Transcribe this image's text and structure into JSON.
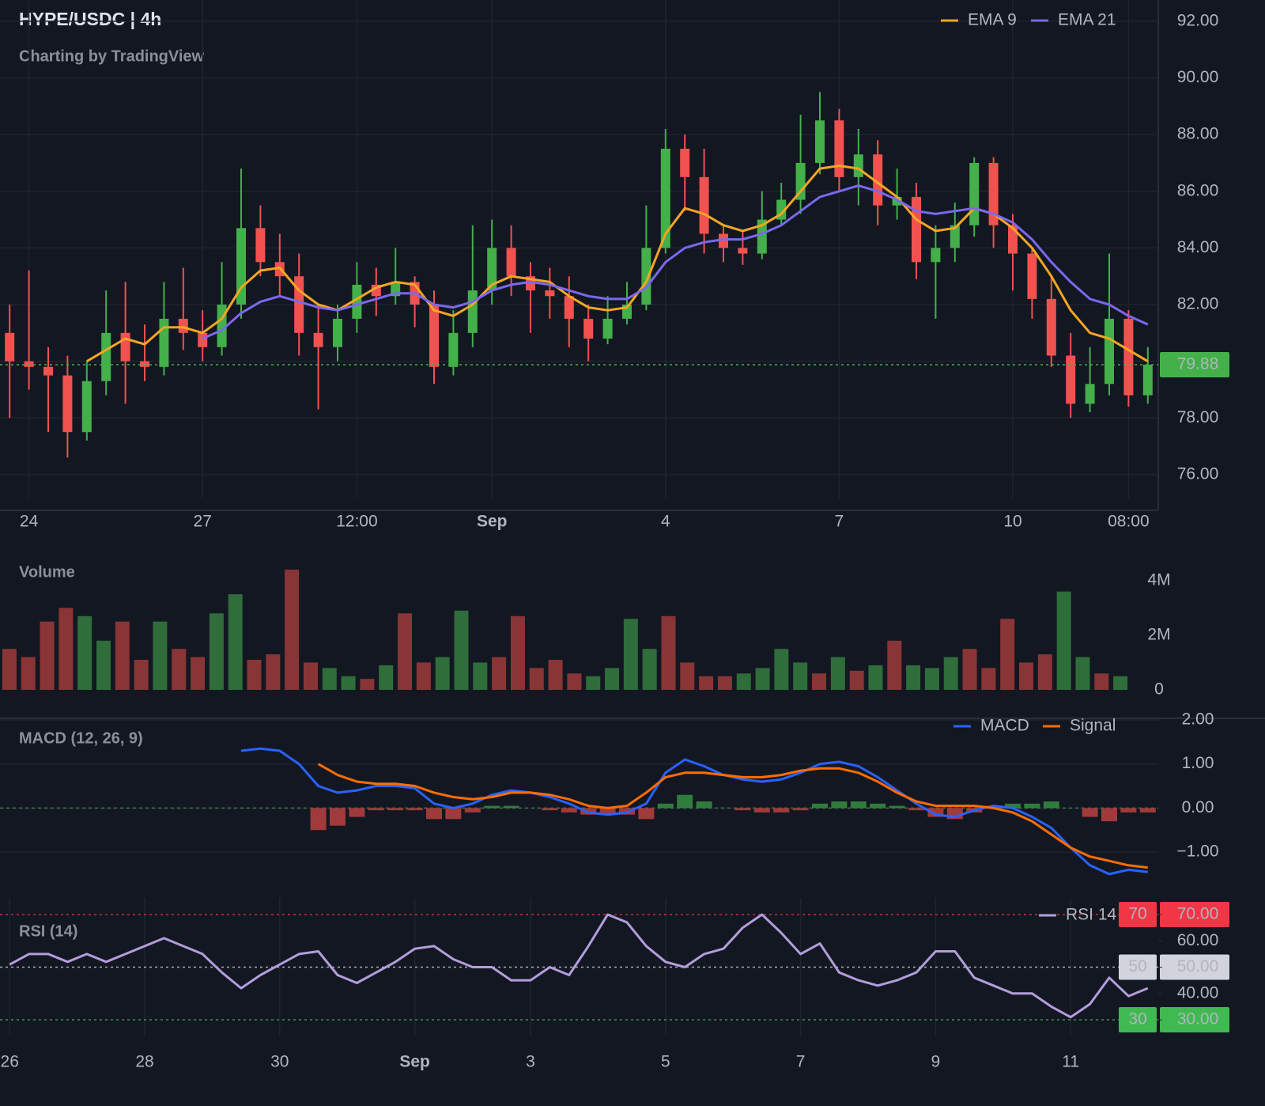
{
  "chart_data": [
    {
      "type": "candlestick",
      "title": "HYPE/USDC | 4h",
      "subtitle": "Charting by TradingView",
      "categories": [
        null,
        "24",
        null,
        null,
        null,
        null,
        null,
        null,
        null,
        null,
        "27",
        null,
        null,
        null,
        null,
        null,
        null,
        null,
        "12:00",
        null,
        null,
        null,
        null,
        null,
        null,
        "Sep",
        null,
        null,
        null,
        null,
        null,
        null,
        null,
        null,
        "4",
        null,
        null,
        null,
        null,
        null,
        null,
        null,
        null,
        "7",
        null,
        null,
        null,
        null,
        null,
        null,
        null,
        null,
        "10",
        null,
        null,
        null,
        null,
        null,
        "08:00",
        null
      ],
      "open": [
        81.0,
        80.0,
        79.8,
        79.5,
        77.5,
        79.3,
        81.0,
        80.0,
        79.8,
        81.5,
        81.0,
        80.5,
        82.0,
        84.7,
        83.5,
        83.0,
        81.0,
        80.5,
        81.5,
        82.7,
        82.3,
        82.8,
        82.0,
        79.8,
        81.0,
        82.5,
        84.0,
        83.0,
        82.5,
        82.3,
        81.5,
        80.8,
        81.5,
        82.0,
        84.0,
        87.5,
        86.5,
        84.5,
        84.0,
        83.8,
        85.0,
        85.7,
        87.0,
        88.5,
        86.5,
        87.3,
        85.5,
        85.8,
        83.5,
        84.0,
        84.8,
        87.0,
        84.8,
        83.8,
        82.2,
        80.2,
        78.5,
        79.2,
        81.5,
        78.8
      ],
      "high": [
        82.0,
        83.2,
        80.5,
        80.2,
        80.0,
        82.5,
        82.8,
        81.3,
        82.8,
        83.3,
        81.8,
        83.5,
        86.8,
        85.5,
        84.5,
        83.8,
        82.0,
        82.0,
        83.5,
        83.3,
        84.0,
        83.0,
        82.5,
        81.8,
        84.8,
        85.0,
        84.8,
        83.5,
        83.3,
        83.0,
        82.0,
        82.3,
        82.8,
        85.5,
        88.2,
        88.0,
        87.5,
        84.8,
        84.6,
        86.0,
        86.3,
        88.7,
        89.5,
        88.9,
        88.2,
        87.8,
        86.8,
        86.3,
        84.8,
        85.6,
        87.2,
        87.2,
        85.2,
        84.0,
        83.0,
        81.0,
        80.5,
        83.8,
        81.8,
        80.5
      ],
      "low": [
        78.0,
        79.0,
        77.5,
        76.6,
        77.2,
        78.8,
        78.5,
        79.3,
        79.5,
        80.4,
        80.0,
        80.2,
        81.5,
        83.0,
        82.3,
        80.2,
        78.3,
        80.0,
        81.0,
        81.6,
        82.0,
        81.2,
        79.2,
        79.5,
        80.5,
        82.0,
        82.3,
        81.0,
        81.5,
        80.5,
        80.0,
        80.6,
        81.3,
        81.8,
        83.8,
        85.3,
        83.8,
        83.5,
        83.4,
        83.6,
        84.8,
        85.2,
        86.6,
        86.0,
        85.5,
        84.8,
        85.0,
        82.9,
        81.5,
        83.5,
        84.4,
        84.0,
        82.5,
        81.5,
        79.8,
        78.0,
        78.2,
        78.8,
        78.4,
        78.5
      ],
      "close": [
        80.0,
        79.8,
        79.5,
        77.5,
        79.3,
        81.0,
        80.0,
        79.8,
        81.5,
        81.0,
        80.5,
        82.0,
        84.7,
        83.5,
        83.0,
        81.0,
        80.5,
        81.5,
        82.7,
        82.3,
        82.8,
        82.0,
        79.8,
        81.0,
        82.5,
        84.0,
        83.0,
        82.5,
        82.3,
        81.5,
        80.8,
        81.5,
        82.0,
        84.0,
        87.5,
        86.5,
        84.5,
        84.0,
        83.8,
        85.0,
        85.7,
        87.0,
        88.5,
        86.5,
        87.3,
        85.5,
        85.8,
        83.5,
        84.0,
        84.8,
        87.0,
        84.8,
        83.8,
        82.2,
        80.2,
        78.5,
        79.2,
        81.5,
        78.8,
        79.88
      ],
      "up_color": "#43b04a",
      "down_color": "#f0524f",
      "series": [
        {
          "name": "EMA 9",
          "color": "#f5a623",
          "values": [
            null,
            null,
            null,
            null,
            80.0,
            80.4,
            80.8,
            80.6,
            81.2,
            81.2,
            81.0,
            81.5,
            82.6,
            83.2,
            83.3,
            82.5,
            82.0,
            81.8,
            82.2,
            82.6,
            82.8,
            82.7,
            81.8,
            81.6,
            82.0,
            82.7,
            83.0,
            82.9,
            82.8,
            82.3,
            81.9,
            81.8,
            81.9,
            82.8,
            84.5,
            85.4,
            85.2,
            84.8,
            84.6,
            84.8,
            85.2,
            86.0,
            86.8,
            86.9,
            86.8,
            86.3,
            85.8,
            85.0,
            84.6,
            84.7,
            85.4,
            85.2,
            84.7,
            84.0,
            83.0,
            81.8,
            81.0,
            80.8,
            80.4,
            80.0
          ]
        },
        {
          "name": "EMA 21",
          "color": "#7b68ee",
          "values": [
            null,
            null,
            null,
            null,
            null,
            null,
            null,
            null,
            null,
            null,
            80.8,
            81.1,
            81.7,
            82.1,
            82.3,
            82.1,
            81.9,
            81.8,
            82.0,
            82.2,
            82.4,
            82.4,
            82.0,
            81.9,
            82.1,
            82.5,
            82.7,
            82.8,
            82.7,
            82.5,
            82.3,
            82.2,
            82.2,
            82.6,
            83.5,
            84.0,
            84.2,
            84.3,
            84.3,
            84.5,
            84.8,
            85.3,
            85.8,
            86.0,
            86.2,
            86.0,
            85.7,
            85.3,
            85.2,
            85.3,
            85.4,
            85.2,
            84.9,
            84.3,
            83.5,
            82.8,
            82.2,
            82.0,
            81.6,
            81.3
          ]
        }
      ],
      "ylim": [
        75.16,
        92.75
      ],
      "yticks": [
        {
          "value": 76,
          "label": "76.00"
        },
        {
          "value": 78,
          "label": "78.00"
        },
        {
          "value": 80,
          "label": "80.00"
        },
        {
          "value": 82,
          "label": "82.00"
        },
        {
          "value": 84,
          "label": "84.00"
        },
        {
          "value": 86,
          "label": "86.00"
        },
        {
          "value": 88,
          "label": "88.00"
        },
        {
          "value": 90,
          "label": "90.00"
        },
        {
          "value": 92,
          "label": "92.00"
        }
      ],
      "last_price": 79.88,
      "grid": true
    },
    {
      "type": "bar",
      "title": "Volume",
      "values": [
        1500000,
        1200000,
        2500000,
        3000000,
        2700000,
        1800000,
        2500000,
        1100000,
        2500000,
        1500000,
        1200000,
        2800000,
        3500000,
        1100000,
        1300000,
        4400000,
        1000000,
        800000,
        500000,
        400000,
        900000,
        2800000,
        1000000,
        1200000,
        2900000,
        1000000,
        1200000,
        2700000,
        800000,
        1100000,
        600000,
        500000,
        800000,
        2600000,
        1500000,
        2700000,
        1000000,
        500000,
        500000,
        600000,
        800000,
        1500000,
        1000000,
        600000,
        1200000,
        700000,
        900000,
        1800000,
        900000,
        800000,
        1200000,
        1500000,
        800000,
        2600000,
        1000000,
        1300000,
        3600000,
        1200000,
        600000,
        500000
      ],
      "up_color": "#2f6d3a",
      "down_color": "#8a3535",
      "ylim": [
        -87000,
        5270000
      ],
      "yticks": [
        0,
        {
          "value": 2000000,
          "label": "2M"
        },
        {
          "value": 4000000,
          "label": "4M"
        }
      ]
    },
    {
      "type": "macd",
      "title": "MACD (12, 26, 9)",
      "series": [
        {
          "name": "MACD",
          "color": "#2962ff",
          "values": [
            null,
            null,
            null,
            null,
            null,
            null,
            null,
            null,
            null,
            null,
            null,
            null,
            1.3,
            1.35,
            1.3,
            1.0,
            0.5,
            0.35,
            0.4,
            0.5,
            0.5,
            0.45,
            0.1,
            0.0,
            0.1,
            0.3,
            0.4,
            0.35,
            0.25,
            0.1,
            -0.1,
            -0.15,
            -0.1,
            0.1,
            0.8,
            1.1,
            0.95,
            0.75,
            0.65,
            0.6,
            0.65,
            0.8,
            1.0,
            1.05,
            0.95,
            0.7,
            0.4,
            0.1,
            -0.15,
            -0.2,
            -0.05,
            0.05,
            0.0,
            -0.2,
            -0.45,
            -0.9,
            -1.3,
            -1.5,
            -1.4,
            -1.45
          ]
        },
        {
          "name": "Signal",
          "color": "#ff6d00",
          "values": [
            null,
            null,
            null,
            null,
            null,
            null,
            null,
            null,
            null,
            null,
            null,
            null,
            null,
            null,
            null,
            null,
            1.0,
            0.75,
            0.6,
            0.55,
            0.55,
            0.5,
            0.35,
            0.25,
            0.2,
            0.25,
            0.35,
            0.35,
            0.3,
            0.2,
            0.05,
            0.0,
            0.05,
            0.35,
            0.7,
            0.8,
            0.8,
            0.75,
            0.7,
            0.7,
            0.75,
            0.85,
            0.9,
            0.9,
            0.8,
            0.6,
            0.35,
            0.15,
            0.05,
            0.05,
            0.05,
            0.0,
            -0.1,
            -0.3,
            -0.6,
            -0.9,
            -1.1,
            -1.2,
            -1.3,
            -1.35
          ]
        }
      ],
      "histogram": {
        "up_color": "#2f7d3a",
        "down_color": "#a13a3a",
        "values": [
          null,
          null,
          null,
          null,
          null,
          null,
          null,
          null,
          null,
          null,
          null,
          null,
          null,
          null,
          null,
          null,
          -0.5,
          -0.4,
          -0.2,
          -0.05,
          -0.05,
          -0.05,
          -0.25,
          -0.25,
          -0.1,
          0.05,
          0.05,
          0.0,
          -0.05,
          -0.1,
          -0.15,
          -0.15,
          -0.15,
          -0.25,
          0.1,
          0.3,
          0.15,
          0.0,
          -0.05,
          -0.1,
          -0.1,
          -0.05,
          0.1,
          0.15,
          0.15,
          0.1,
          0.05,
          -0.05,
          -0.2,
          -0.25,
          -0.1,
          0.05,
          0.1,
          0.1,
          0.15,
          0.0,
          -0.2,
          -0.3,
          -0.1,
          -0.1
        ]
      },
      "ylim": [
        -1.95,
        2.0
      ],
      "yticks": [
        {
          "value": 2,
          "label": "2.00"
        },
        {
          "value": 1,
          "label": "1.00"
        },
        {
          "value": 0,
          "label": "0.00"
        },
        {
          "value": -1,
          "label": "−1.00"
        }
      ]
    },
    {
      "type": "line",
      "title": "RSI (14)",
      "categories": [
        "26",
        null,
        null,
        null,
        null,
        null,
        null,
        "28",
        null,
        null,
        null,
        null,
        null,
        null,
        "30",
        null,
        null,
        null,
        null,
        null,
        null,
        "Sep",
        null,
        null,
        null,
        null,
        null,
        "3",
        null,
        null,
        null,
        null,
        null,
        null,
        "5",
        null,
        null,
        null,
        null,
        null,
        null,
        "7",
        null,
        null,
        null,
        null,
        null,
        null,
        "9",
        null,
        null,
        null,
        null,
        null,
        null,
        "11",
        null,
        null,
        null,
        null
      ],
      "series": [
        {
          "name": "RSI 14",
          "color": "#b39ddb",
          "values": [
            51,
            55,
            55,
            52,
            55,
            52,
            55,
            58,
            61,
            58,
            55,
            48,
            42,
            47,
            51,
            55,
            56,
            47,
            44,
            48,
            52,
            57,
            58,
            53,
            50,
            50,
            45,
            45,
            50,
            47,
            58,
            70,
            67,
            58,
            52,
            50,
            55,
            57,
            65,
            70,
            63,
            55,
            59,
            48,
            45,
            43,
            45,
            48,
            56,
            56,
            46,
            43,
            40,
            40,
            35,
            31,
            36,
            46,
            39,
            42
          ]
        }
      ],
      "levels": [
        70,
        50,
        30
      ],
      "level_colors": [
        "#f23645",
        "#d1d4dc",
        "#3fb950"
      ],
      "level_text_colors": [
        "#ffffff",
        "#131722",
        "#ffffff"
      ],
      "ylim": [
        23.7,
        76.3
      ],
      "yticks": [
        {
          "value": 30,
          "label": "30.00"
        },
        {
          "value": 40,
          "label": "40.00"
        },
        {
          "value": 50,
          "label": "50.00"
        },
        {
          "value": 60,
          "label": "60.00"
        },
        {
          "value": 70,
          "label": "70.00"
        }
      ]
    }
  ]
}
